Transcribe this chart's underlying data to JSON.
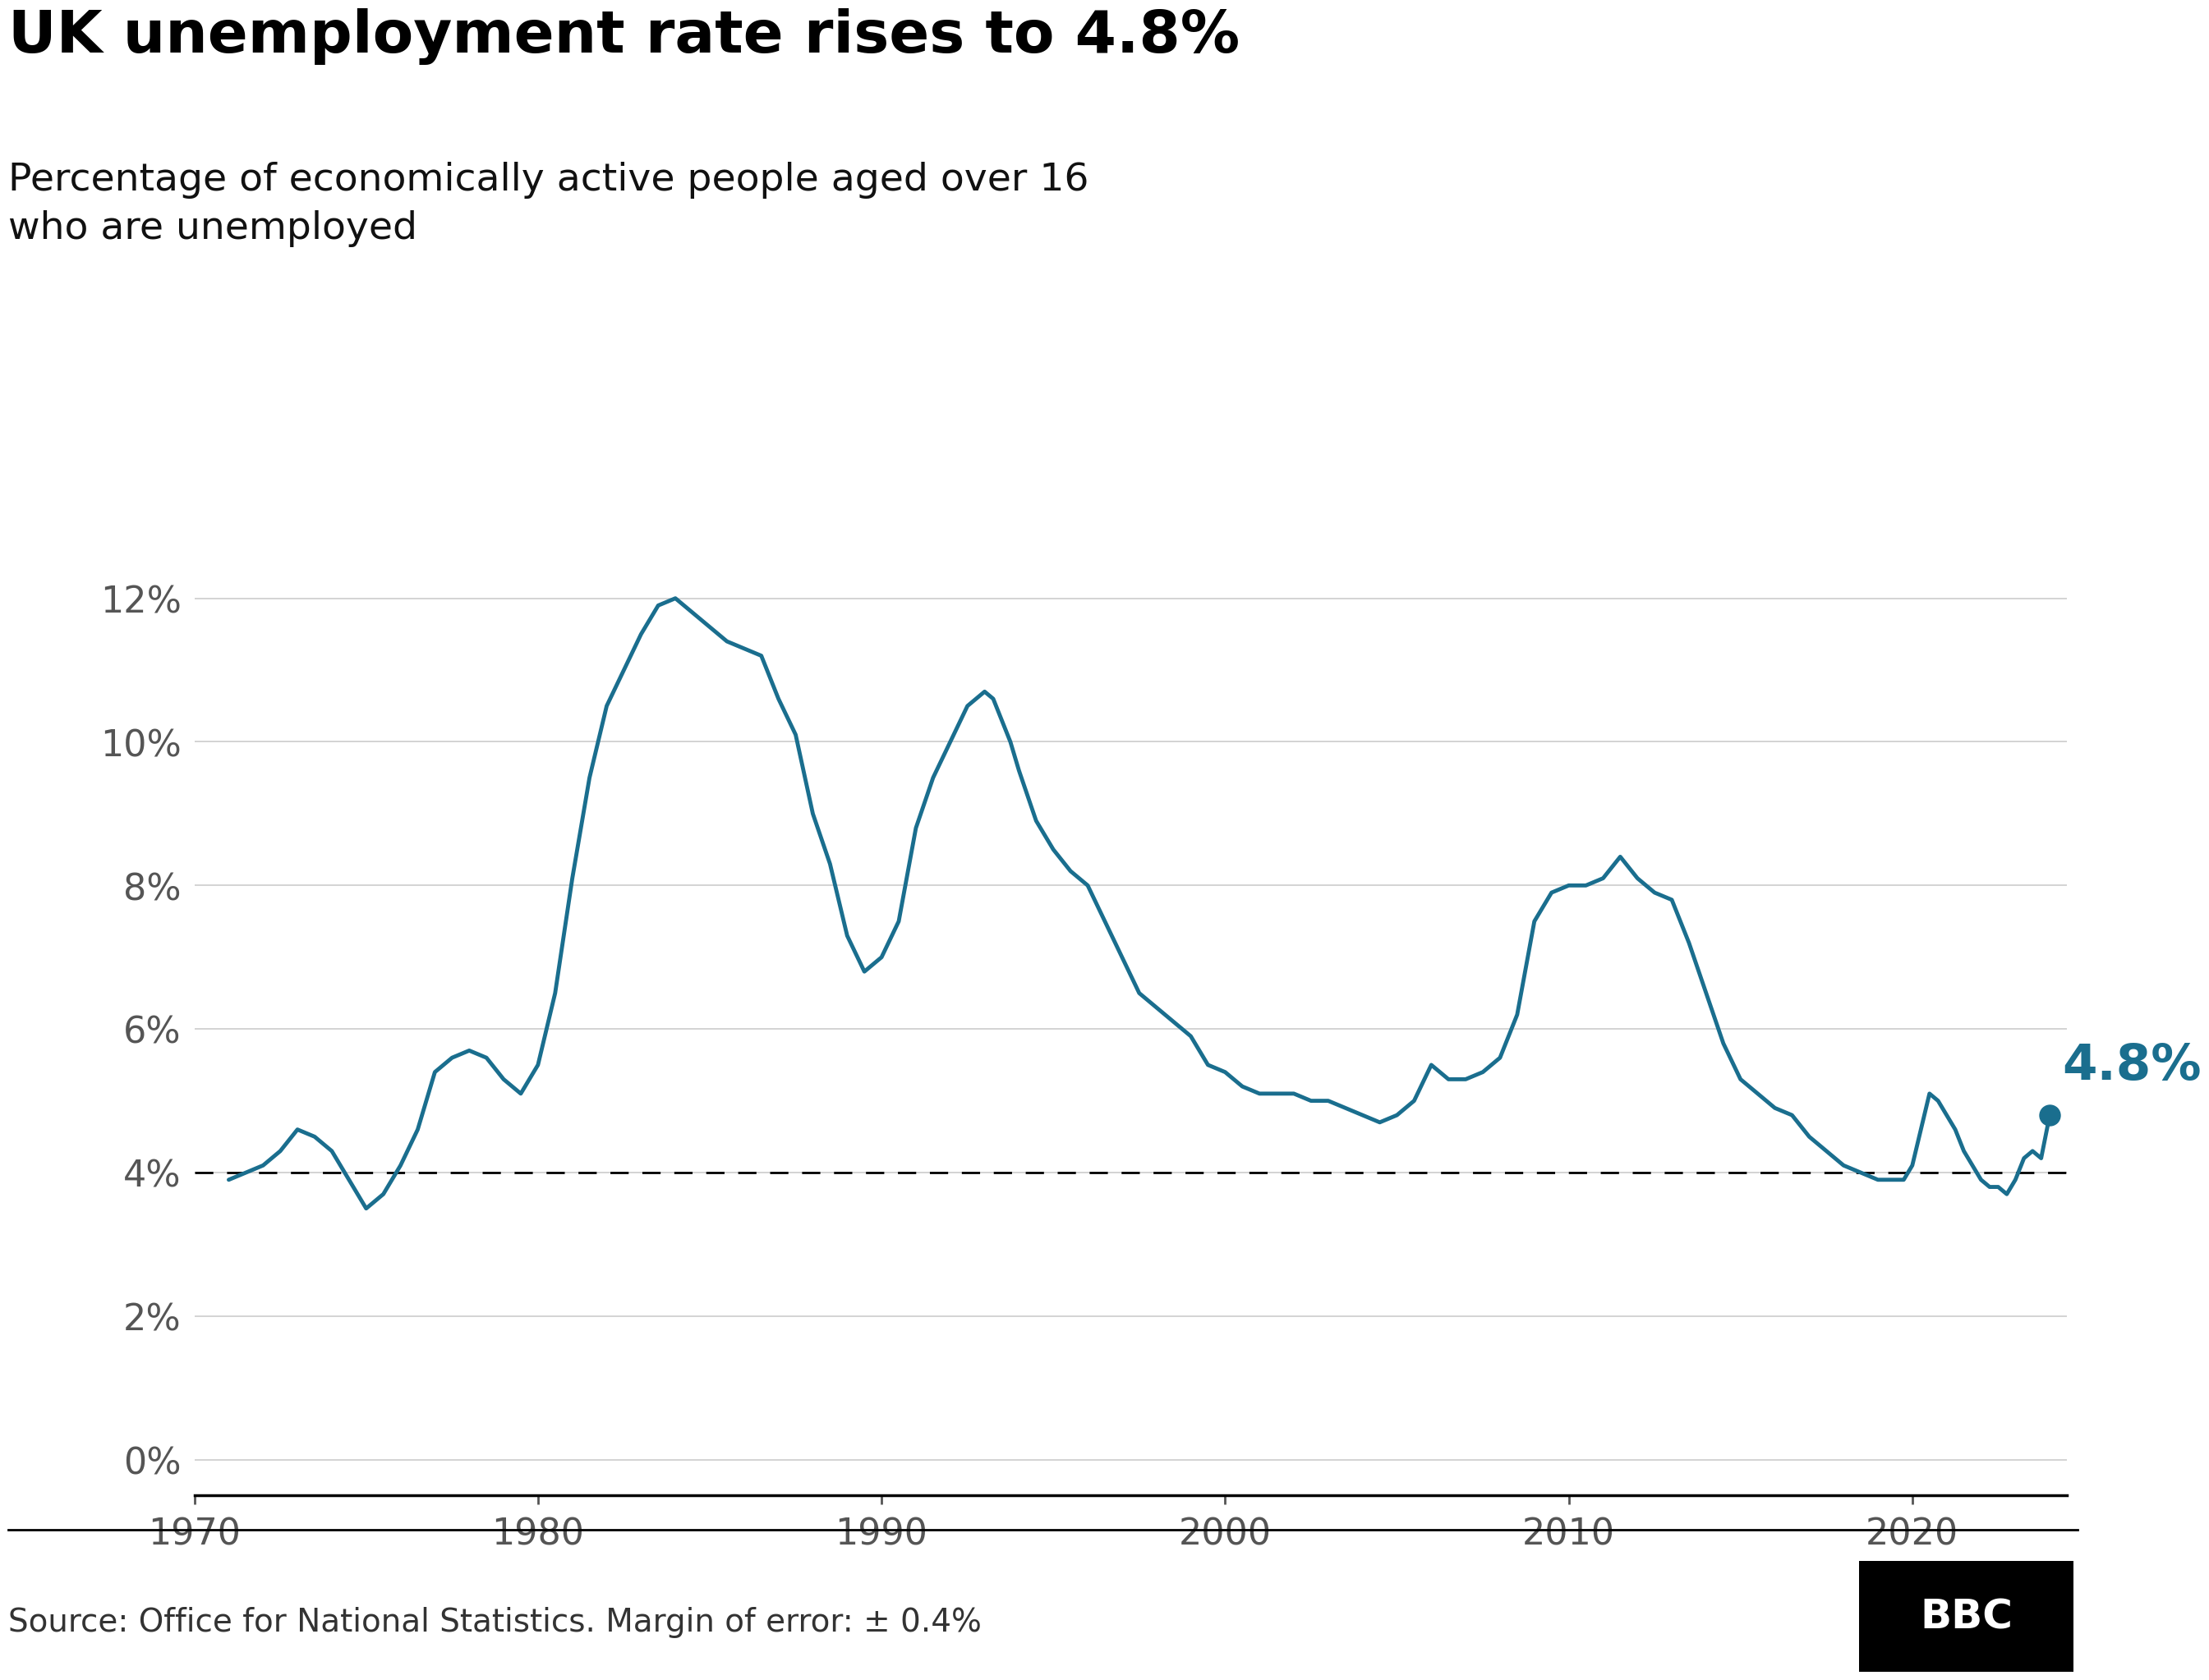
{
  "title": "UK unemployment rate rises to 4.8%",
  "subtitle": "Percentage of economically active people aged over 16\nwho are unemployed",
  "source_text": "Source: Office for National Statistics. Margin of error: ± 0.4%",
  "line_color": "#1a6e8e",
  "background_color": "#ffffff",
  "annotation_value": "4.8%",
  "annotation_color": "#1a6e8e",
  "dashed_line_y": 4.0,
  "yticks": [
    0,
    2,
    4,
    6,
    8,
    10,
    12
  ],
  "ytick_labels": [
    "0%",
    "2%",
    "4%",
    "6%",
    "8%",
    "10%",
    "12%"
  ],
  "ylim": [
    -0.5,
    13.2
  ],
  "xlim": [
    1970,
    2024.5
  ],
  "xticks": [
    1970,
    1980,
    1990,
    2000,
    2010,
    2020
  ],
  "data": [
    [
      1971.0,
      3.9
    ],
    [
      1971.5,
      4.0
    ],
    [
      1972.0,
      4.1
    ],
    [
      1972.5,
      4.3
    ],
    [
      1973.0,
      4.6
    ],
    [
      1973.5,
      4.5
    ],
    [
      1974.0,
      4.3
    ],
    [
      1974.5,
      3.9
    ],
    [
      1975.0,
      3.5
    ],
    [
      1975.5,
      3.7
    ],
    [
      1976.0,
      4.1
    ],
    [
      1976.5,
      4.6
    ],
    [
      1977.0,
      5.4
    ],
    [
      1977.5,
      5.6
    ],
    [
      1978.0,
      5.7
    ],
    [
      1978.5,
      5.6
    ],
    [
      1979.0,
      5.3
    ],
    [
      1979.5,
      5.1
    ],
    [
      1980.0,
      5.5
    ],
    [
      1980.5,
      6.5
    ],
    [
      1981.0,
      8.1
    ],
    [
      1981.5,
      9.5
    ],
    [
      1982.0,
      10.5
    ],
    [
      1982.5,
      11.0
    ],
    [
      1983.0,
      11.5
    ],
    [
      1983.5,
      11.9
    ],
    [
      1984.0,
      12.0
    ],
    [
      1984.5,
      11.8
    ],
    [
      1985.0,
      11.6
    ],
    [
      1985.5,
      11.4
    ],
    [
      1986.0,
      11.3
    ],
    [
      1986.5,
      11.2
    ],
    [
      1987.0,
      10.6
    ],
    [
      1987.5,
      10.1
    ],
    [
      1988.0,
      9.0
    ],
    [
      1988.5,
      8.3
    ],
    [
      1989.0,
      7.3
    ],
    [
      1989.5,
      6.8
    ],
    [
      1990.0,
      7.0
    ],
    [
      1990.5,
      7.5
    ],
    [
      1991.0,
      8.8
    ],
    [
      1991.5,
      9.5
    ],
    [
      1992.0,
      10.0
    ],
    [
      1992.5,
      10.5
    ],
    [
      1993.0,
      10.7
    ],
    [
      1993.25,
      10.6
    ],
    [
      1993.5,
      10.3
    ],
    [
      1993.75,
      10.0
    ],
    [
      1994.0,
      9.6
    ],
    [
      1994.5,
      8.9
    ],
    [
      1995.0,
      8.5
    ],
    [
      1995.5,
      8.2
    ],
    [
      1996.0,
      8.0
    ],
    [
      1996.5,
      7.5
    ],
    [
      1997.0,
      7.0
    ],
    [
      1997.5,
      6.5
    ],
    [
      1998.0,
      6.3
    ],
    [
      1998.5,
      6.1
    ],
    [
      1999.0,
      5.9
    ],
    [
      1999.5,
      5.5
    ],
    [
      2000.0,
      5.4
    ],
    [
      2000.5,
      5.2
    ],
    [
      2001.0,
      5.1
    ],
    [
      2001.5,
      5.1
    ],
    [
      2002.0,
      5.1
    ],
    [
      2002.5,
      5.0
    ],
    [
      2003.0,
      5.0
    ],
    [
      2003.5,
      4.9
    ],
    [
      2004.0,
      4.8
    ],
    [
      2004.5,
      4.7
    ],
    [
      2004.75,
      4.75
    ],
    [
      2005.0,
      4.8
    ],
    [
      2005.5,
      5.0
    ],
    [
      2006.0,
      5.5
    ],
    [
      2006.5,
      5.3
    ],
    [
      2007.0,
      5.3
    ],
    [
      2007.5,
      5.4
    ],
    [
      2008.0,
      5.6
    ],
    [
      2008.5,
      6.2
    ],
    [
      2009.0,
      7.5
    ],
    [
      2009.5,
      7.9
    ],
    [
      2010.0,
      8.0
    ],
    [
      2010.5,
      8.0
    ],
    [
      2011.0,
      8.1
    ],
    [
      2011.5,
      8.4
    ],
    [
      2012.0,
      8.1
    ],
    [
      2012.5,
      7.9
    ],
    [
      2013.0,
      7.8
    ],
    [
      2013.5,
      7.2
    ],
    [
      2014.0,
      6.5
    ],
    [
      2014.5,
      5.8
    ],
    [
      2015.0,
      5.3
    ],
    [
      2015.5,
      5.1
    ],
    [
      2016.0,
      4.9
    ],
    [
      2016.5,
      4.8
    ],
    [
      2017.0,
      4.5
    ],
    [
      2017.5,
      4.3
    ],
    [
      2018.0,
      4.1
    ],
    [
      2018.5,
      4.0
    ],
    [
      2019.0,
      3.9
    ],
    [
      2019.5,
      3.9
    ],
    [
      2019.75,
      3.9
    ],
    [
      2020.0,
      4.1
    ],
    [
      2020.25,
      4.6
    ],
    [
      2020.5,
      5.1
    ],
    [
      2020.75,
      5.0
    ],
    [
      2021.0,
      4.8
    ],
    [
      2021.25,
      4.6
    ],
    [
      2021.5,
      4.3
    ],
    [
      2021.75,
      4.1
    ],
    [
      2022.0,
      3.9
    ],
    [
      2022.25,
      3.8
    ],
    [
      2022.5,
      3.8
    ],
    [
      2022.75,
      3.7
    ],
    [
      2023.0,
      3.9
    ],
    [
      2023.25,
      4.2
    ],
    [
      2023.5,
      4.3
    ],
    [
      2023.75,
      4.2
    ],
    [
      2024.0,
      4.8
    ]
  ],
  "endpoint_x": 2024.0,
  "endpoint_y": 4.8,
  "title_fontsize": 52,
  "subtitle_fontsize": 34,
  "tick_fontsize": 32,
  "annotation_fontsize": 44,
  "source_fontsize": 28
}
